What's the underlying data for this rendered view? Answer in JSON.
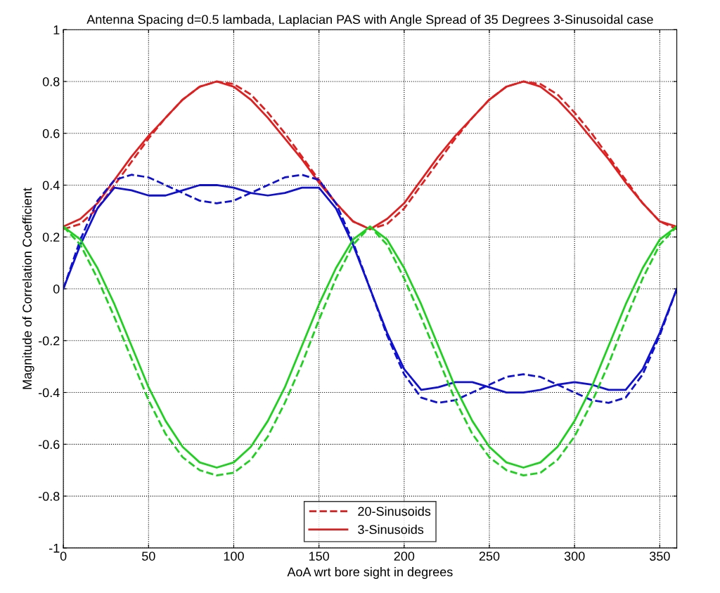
{
  "chart_data": {
    "type": "line",
    "title": "Antenna Spacing d=0.5 lambada, Laplacian PAS with Angle Spread of 35 Degrees 3-Sinusoidal case",
    "xlabel": "AoA wrt bore sight in degrees",
    "ylabel": "Magnitude of Correlation Coefficient",
    "x": [
      0,
      10,
      20,
      30,
      40,
      50,
      60,
      70,
      80,
      90,
      100,
      110,
      120,
      130,
      140,
      150,
      160,
      170,
      180,
      190,
      200,
      210,
      220,
      230,
      240,
      250,
      260,
      270,
      280,
      290,
      300,
      310,
      320,
      330,
      340,
      350,
      360
    ],
    "series": [
      {
        "name": "20-Sinusoids",
        "color": "#e02020",
        "line_style": "dashed",
        "values": [
          0.23,
          0.25,
          0.31,
          0.4,
          0.49,
          0.58,
          0.66,
          0.73,
          0.78,
          0.8,
          0.79,
          0.75,
          0.68,
          0.6,
          0.51,
          0.42,
          0.33,
          0.26,
          0.23,
          0.25,
          0.31,
          0.4,
          0.49,
          0.58,
          0.66,
          0.73,
          0.78,
          0.8,
          0.79,
          0.75,
          0.68,
          0.6,
          0.51,
          0.42,
          0.33,
          0.26,
          0.23
        ]
      },
      {
        "name": "3-Sinusoids",
        "color": "#e02020",
        "line_style": "solid",
        "values": [
          0.24,
          0.27,
          0.33,
          0.42,
          0.51,
          0.59,
          0.66,
          0.73,
          0.78,
          0.8,
          0.78,
          0.73,
          0.66,
          0.58,
          0.5,
          0.41,
          0.33,
          0.26,
          0.23,
          0.27,
          0.33,
          0.42,
          0.51,
          0.59,
          0.66,
          0.73,
          0.78,
          0.8,
          0.78,
          0.73,
          0.66,
          0.58,
          0.5,
          0.41,
          0.33,
          0.26,
          0.24
        ]
      },
      {
        "color": "#1010d0",
        "line_style": "dashed",
        "values": [
          0.0,
          0.19,
          0.34,
          0.42,
          0.44,
          0.43,
          0.4,
          0.37,
          0.34,
          0.33,
          0.34,
          0.37,
          0.4,
          0.43,
          0.44,
          0.42,
          0.33,
          0.18,
          0.0,
          -0.18,
          -0.33,
          -0.42,
          -0.44,
          -0.43,
          -0.4,
          -0.37,
          -0.34,
          -0.33,
          -0.34,
          -0.37,
          -0.4,
          -0.43,
          -0.44,
          -0.42,
          -0.33,
          -0.18,
          0.0
        ]
      },
      {
        "color": "#1010d0",
        "line_style": "solid",
        "values": [
          0.0,
          0.17,
          0.31,
          0.39,
          0.38,
          0.36,
          0.36,
          0.38,
          0.4,
          0.4,
          0.39,
          0.37,
          0.36,
          0.37,
          0.39,
          0.39,
          0.31,
          0.17,
          0.0,
          -0.17,
          -0.31,
          -0.39,
          -0.38,
          -0.36,
          -0.36,
          -0.38,
          -0.4,
          -0.4,
          -0.39,
          -0.37,
          -0.36,
          -0.37,
          -0.39,
          -0.39,
          -0.31,
          -0.17,
          0.0
        ]
      },
      {
        "color": "#20d020",
        "line_style": "dashed",
        "values": [
          0.24,
          0.17,
          0.04,
          -0.11,
          -0.27,
          -0.43,
          -0.56,
          -0.65,
          -0.7,
          -0.72,
          -0.71,
          -0.66,
          -0.57,
          -0.44,
          -0.29,
          -0.12,
          0.04,
          0.17,
          0.24,
          0.17,
          0.04,
          -0.11,
          -0.27,
          -0.43,
          -0.56,
          -0.65,
          -0.7,
          -0.72,
          -0.71,
          -0.66,
          -0.57,
          -0.44,
          -0.29,
          -0.12,
          0.04,
          0.17,
          0.24
        ]
      },
      {
        "color": "#20d020",
        "line_style": "solid",
        "values": [
          0.24,
          0.19,
          0.08,
          -0.06,
          -0.22,
          -0.38,
          -0.51,
          -0.61,
          -0.67,
          -0.69,
          -0.67,
          -0.61,
          -0.51,
          -0.38,
          -0.22,
          -0.06,
          0.08,
          0.19,
          0.24,
          0.19,
          0.08,
          -0.06,
          -0.22,
          -0.38,
          -0.51,
          -0.61,
          -0.67,
          -0.69,
          -0.67,
          -0.61,
          -0.51,
          -0.38,
          -0.22,
          -0.06,
          0.08,
          0.19,
          0.24
        ]
      }
    ],
    "xlim": [
      0,
      360
    ],
    "xticks": [
      0,
      50,
      100,
      150,
      200,
      250,
      300,
      350
    ],
    "ylim": [
      -1,
      1
    ],
    "yticks": [
      -1,
      -0.8,
      -0.6,
      -0.4,
      -0.2,
      0,
      0.2,
      0.4,
      0.6,
      0.8,
      1
    ],
    "grid": true,
    "legend": "bottom"
  }
}
